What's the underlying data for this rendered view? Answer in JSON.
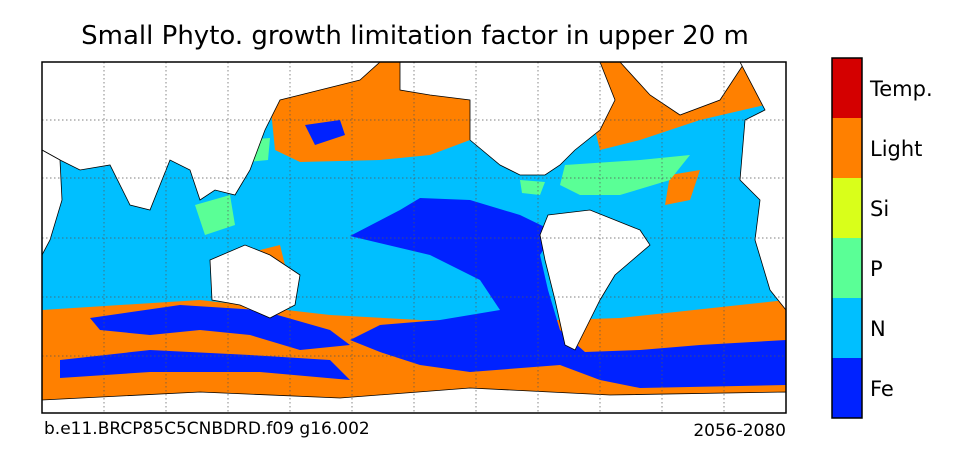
{
  "title": "Small Phyto. growth limitation factor in upper 20 m",
  "colorbar": {
    "items": [
      {
        "label": "Temp.",
        "color": "#d40000"
      },
      {
        "label": "Light",
        "color": "#ff8000"
      },
      {
        "label": "Si",
        "color": "#d9ff1a"
      },
      {
        "label": "P",
        "color": "#5aff96"
      },
      {
        "label": "N",
        "color": "#00bfff"
      },
      {
        "label": "Fe",
        "color": "#0022ff"
      }
    ]
  },
  "footer": {
    "left": "b.e11.BRCP85C5CNBDRD.f09 g16.002",
    "right": "2056-2080"
  }
}
